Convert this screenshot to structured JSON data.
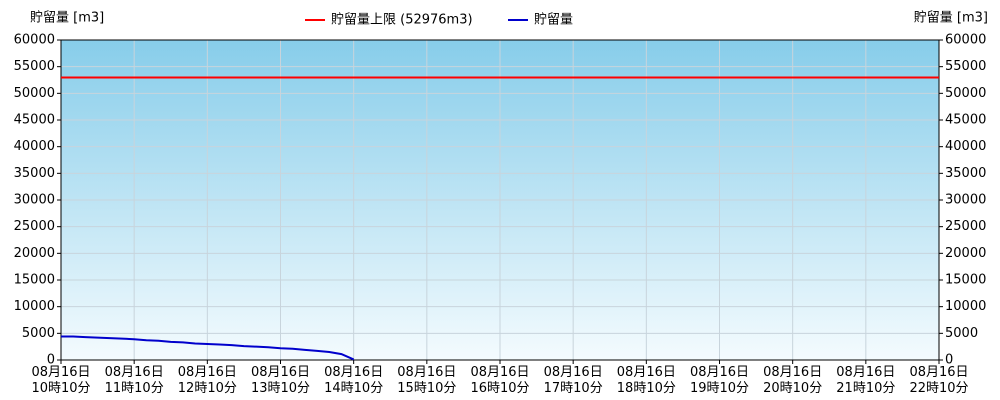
{
  "chart_data": {
    "type": "line",
    "y_label": "貯留量 [m3]",
    "y2_label": "貯留量 [m3]",
    "xlim": [
      "10:10",
      "22:10"
    ],
    "xticks": [
      {
        "value": "10:10",
        "label": "08月16日\n10時10分"
      },
      {
        "value": "11:10",
        "label": "08月16日\n11時10分"
      },
      {
        "value": "12:10",
        "label": "08月16日\n12時10分"
      },
      {
        "value": "13:10",
        "label": "08月16日\n13時10分"
      },
      {
        "value": "14:10",
        "label": "08月16日\n14時10分"
      },
      {
        "value": "15:10",
        "label": "08月16日\n15時10分"
      },
      {
        "value": "16:10",
        "label": "08月16日\n16時10分"
      },
      {
        "value": "17:10",
        "label": "08月16日\n17時10分"
      },
      {
        "value": "18:10",
        "label": "08月16日\n18時10分"
      },
      {
        "value": "19:10",
        "label": "08月16日\n19時10分"
      },
      {
        "value": "20:10",
        "label": "08月16日\n20時10分"
      },
      {
        "value": "21:10",
        "label": "08月16日\n21時10分"
      },
      {
        "value": "22:10",
        "label": "08月16日\n22時10分"
      }
    ],
    "ylim": [
      0,
      60000
    ],
    "yticks": [
      0,
      5000,
      10000,
      15000,
      20000,
      25000,
      30000,
      35000,
      40000,
      45000,
      50000,
      55000,
      60000
    ],
    "y2lim": [
      0,
      60000
    ],
    "y2ticks": [
      0,
      5000,
      10000,
      15000,
      20000,
      25000,
      30000,
      35000,
      40000,
      45000,
      50000,
      55000,
      60000
    ],
    "grid": true,
    "limit": {
      "name": "貯留量上限 (52976m3)",
      "value": 52976,
      "color": "#ff0000"
    },
    "x": [
      "10:10",
      "10:20",
      "10:30",
      "10:40",
      "10:50",
      "11:00",
      "11:10",
      "11:20",
      "11:30",
      "11:40",
      "11:50",
      "12:00",
      "12:10",
      "12:20",
      "12:30",
      "12:40",
      "12:50",
      "13:00",
      "13:10",
      "13:20",
      "13:30",
      "13:40",
      "13:50",
      "14:00",
      "14:10"
    ],
    "series": [
      {
        "name": "貯留量",
        "color": "#0000cc",
        "values": [
          4400,
          4400,
          4300,
          4200,
          4100,
          4000,
          3900,
          3700,
          3600,
          3400,
          3300,
          3100,
          3000,
          2900,
          2800,
          2600,
          2500,
          2400,
          2200,
          2100,
          1900,
          1700,
          1500,
          1100,
          100
        ]
      }
    ]
  }
}
